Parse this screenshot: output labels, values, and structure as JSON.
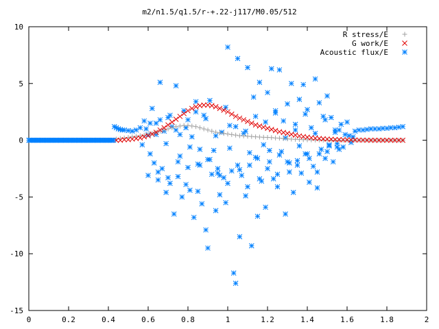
{
  "chart_data": {
    "type": "scatter",
    "title": "m2/n1.5/q1.5/r-+.22-j117/M0.05/512",
    "xlabel": "",
    "ylabel": "",
    "xlim": [
      0,
      2
    ],
    "ylim": [
      -15,
      10
    ],
    "xticks": [
      0,
      0.2,
      0.4,
      0.6,
      0.8,
      1,
      1.2,
      1.4,
      1.6,
      1.8,
      2
    ],
    "xtick_labels": [
      "0",
      "0.2",
      "0.4",
      "0.6",
      "0.8",
      "1",
      "1.2",
      "1.4",
      "1.6",
      "1.8",
      "2"
    ],
    "yticks": [
      -15,
      -10,
      -5,
      0,
      5,
      10
    ],
    "ytick_labels": [
      "-15",
      "-10",
      "-5",
      "0",
      "5",
      "10"
    ],
    "grid": false,
    "legend_position": "top-right",
    "series": [
      {
        "name": "R stress/E",
        "marker": "plus",
        "color": "#a0a0a0",
        "x": [
          0.44,
          0.46,
          0.48,
          0.5,
          0.52,
          0.54,
          0.56,
          0.58,
          0.6,
          0.62,
          0.64,
          0.66,
          0.68,
          0.7,
          0.72,
          0.74,
          0.76,
          0.78,
          0.8,
          0.82,
          0.84,
          0.86,
          0.88,
          0.9,
          0.92,
          0.94,
          0.96,
          0.98,
          1.0,
          1.02,
          1.04,
          1.06,
          1.08,
          1.1,
          1.12,
          1.14,
          1.16,
          1.18,
          1.2,
          1.22,
          1.24,
          1.26,
          1.28,
          1.3,
          1.32,
          1.34,
          1.36,
          1.38,
          1.4,
          1.42,
          1.44,
          1.46,
          1.48,
          1.5,
          1.52,
          1.54,
          1.56,
          1.58,
          1.6,
          1.62,
          1.64,
          1.66,
          1.68,
          1.7,
          1.72,
          1.74,
          1.76,
          1.78,
          1.8,
          1.82,
          1.84,
          1.86,
          1.88
        ],
        "y": [
          0.1,
          0.15,
          0.2,
          0.25,
          0.3,
          0.35,
          0.4,
          0.45,
          0.55,
          0.6,
          0.7,
          0.8,
          0.9,
          1.0,
          1.1,
          1.2,
          1.25,
          1.3,
          1.3,
          1.25,
          1.2,
          1.1,
          1.0,
          0.9,
          0.8,
          0.7,
          0.65,
          0.6,
          0.55,
          0.5,
          0.45,
          0.4,
          0.38,
          0.35,
          0.33,
          0.3,
          0.28,
          0.26,
          0.25,
          0.23,
          0.2,
          0.18,
          0.15,
          0.12,
          0.1,
          0.08,
          0.06,
          0.05,
          0.04,
          0.03,
          0.02,
          0.02,
          0.01,
          0.01,
          0.0,
          0.0,
          0.0,
          0.0,
          0.0,
          0.0,
          0.0,
          0.0,
          0.0,
          0.0,
          0.0,
          0.0,
          0.0,
          0.0,
          0.0,
          0.0,
          0.0,
          0.0,
          0.0
        ]
      },
      {
        "name": "G work/E",
        "marker": "cross",
        "color": "#e00000",
        "x": [
          0.44,
          0.46,
          0.48,
          0.5,
          0.52,
          0.54,
          0.56,
          0.58,
          0.6,
          0.62,
          0.64,
          0.66,
          0.68,
          0.7,
          0.72,
          0.74,
          0.76,
          0.78,
          0.8,
          0.82,
          0.84,
          0.86,
          0.88,
          0.9,
          0.92,
          0.94,
          0.96,
          0.98,
          1.0,
          1.02,
          1.04,
          1.06,
          1.08,
          1.1,
          1.12,
          1.14,
          1.16,
          1.18,
          1.2,
          1.22,
          1.24,
          1.26,
          1.28,
          1.3,
          1.32,
          1.34,
          1.36,
          1.38,
          1.4,
          1.42,
          1.44,
          1.46,
          1.48,
          1.5,
          1.52,
          1.54,
          1.56,
          1.58,
          1.6,
          1.62,
          1.64,
          1.66,
          1.68,
          1.7,
          1.72,
          1.74,
          1.76,
          1.78,
          1.8,
          1.82,
          1.84,
          1.86,
          1.88
        ],
        "y": [
          0.0,
          0.0,
          0.05,
          0.05,
          0.1,
          0.15,
          0.2,
          0.3,
          0.4,
          0.55,
          0.7,
          0.9,
          1.1,
          1.35,
          1.6,
          1.85,
          2.1,
          2.35,
          2.6,
          2.8,
          2.95,
          3.05,
          3.1,
          3.1,
          3.05,
          2.95,
          2.8,
          2.65,
          2.5,
          2.3,
          2.1,
          1.95,
          1.8,
          1.65,
          1.5,
          1.35,
          1.25,
          1.15,
          1.05,
          0.95,
          0.85,
          0.75,
          0.68,
          0.6,
          0.52,
          0.45,
          0.38,
          0.32,
          0.27,
          0.22,
          0.18,
          0.15,
          0.12,
          0.1,
          0.08,
          0.06,
          0.05,
          0.04,
          0.03,
          0.02,
          0.02,
          0.01,
          0.01,
          0.0,
          0.0,
          0.0,
          0.0,
          0.0,
          0.0,
          0.0,
          0.0,
          0.0,
          0.0
        ]
      },
      {
        "name": "Acoustic flux/E",
        "marker": "star",
        "color": "#0080ff",
        "x": [
          0.43,
          0.44,
          0.45,
          0.46,
          0.47,
          0.48,
          0.5,
          0.52,
          0.54,
          0.56,
          0.57,
          0.58,
          0.6,
          0.61,
          0.62,
          0.63,
          0.64,
          0.65,
          0.66,
          0.67,
          0.68,
          0.69,
          0.7,
          0.71,
          0.72,
          0.73,
          0.74,
          0.75,
          0.76,
          0.77,
          0.78,
          0.79,
          0.8,
          0.81,
          0.82,
          0.83,
          0.84,
          0.85,
          0.86,
          0.87,
          0.88,
          0.89,
          0.9,
          0.91,
          0.92,
          0.93,
          0.94,
          0.95,
          0.96,
          0.97,
          0.98,
          0.99,
          1.0,
          1.01,
          1.02,
          1.03,
          1.04,
          1.05,
          1.06,
          1.07,
          1.08,
          1.09,
          1.1,
          1.11,
          1.12,
          1.13,
          1.14,
          1.15,
          1.16,
          1.17,
          1.18,
          1.19,
          1.2,
          1.21,
          1.22,
          1.23,
          1.24,
          1.25,
          1.26,
          1.27,
          1.28,
          1.29,
          1.3,
          1.31,
          1.32,
          1.33,
          1.34,
          1.35,
          1.36,
          1.37,
          1.38,
          1.39,
          1.4,
          1.41,
          1.42,
          1.43,
          1.44,
          1.45,
          1.46,
          1.47,
          1.48,
          1.49,
          1.5,
          1.51,
          1.52,
          1.53,
          1.54,
          1.55,
          1.56,
          1.57,
          1.58,
          1.59,
          1.6,
          1.61,
          1.62,
          1.63,
          1.64,
          1.66,
          1.68,
          1.7,
          1.72,
          1.74,
          1.76,
          1.78,
          1.8,
          1.82,
          1.84,
          1.86,
          1.88,
          0.59,
          0.61,
          0.64,
          0.66,
          0.69,
          0.71,
          0.74,
          0.76,
          0.79,
          0.81,
          0.84,
          0.86,
          0.89,
          0.91,
          0.94,
          0.96,
          0.99,
          1.01,
          1.04,
          1.06,
          1.09,
          1.11,
          1.14,
          1.16,
          1.19,
          1.21,
          1.24,
          1.26,
          1.29,
          1.31,
          1.34,
          1.36,
          1.39,
          1.41,
          1.44,
          1.46,
          1.49,
          1.51,
          1.54,
          1.56,
          0.6,
          0.65,
          0.7,
          0.75,
          0.8,
          0.85,
          0.9,
          0.95,
          1.0,
          1.05,
          1.1,
          1.15,
          1.2,
          1.25,
          1.3,
          1.35,
          1.4,
          1.45,
          1.5,
          1.55
        ],
        "y": [
          1.2,
          1.1,
          1.0,
          0.95,
          0.9,
          0.9,
          0.85,
          0.8,
          0.9,
          1.1,
          -0.4,
          1.7,
          0.5,
          -1.2,
          2.8,
          -2.0,
          1.5,
          -3.5,
          5.1,
          -2.5,
          0.8,
          -4.6,
          2.0,
          -3.8,
          1.2,
          -6.5,
          4.8,
          -3.2,
          0.5,
          -5.0,
          2.6,
          -3.9,
          1.8,
          -4.4,
          0.3,
          -6.8,
          3.4,
          -2.1,
          -0.8,
          -5.6,
          2.2,
          -7.9,
          -9.5,
          3.5,
          -3.0,
          -0.9,
          -6.2,
          -2.5,
          -4.8,
          0.7,
          -3.3,
          -5.5,
          8.2,
          1.3,
          -2.7,
          -11.7,
          -12.6,
          7.2,
          -8.5,
          -3.1,
          0.6,
          -4.9,
          6.4,
          -2.2,
          -9.3,
          3.8,
          -1.5,
          -6.7,
          5.1,
          -3.6,
          -0.4,
          -5.9,
          4.2,
          -1.9,
          6.3,
          -3.4,
          2.4,
          -4.1,
          6.2,
          -1.0,
          1.7,
          -6.5,
          3.2,
          -2.8,
          5.0,
          -4.6,
          0.9,
          -1.8,
          3.6,
          -2.9,
          4.9,
          -1.2,
          2.7,
          -3.7,
          1.1,
          -2.3,
          5.4,
          -4.2,
          3.3,
          -0.8,
          2.1,
          -1.6,
          3.9,
          -0.5,
          2.0,
          -1.9,
          0.7,
          -0.3,
          0.9,
          1.4,
          -0.6,
          0.5,
          1.6,
          0.4,
          -0.2,
          0.3,
          0.8,
          0.9,
          0.9,
          0.95,
          1.0,
          1.0,
          1.0,
          1.05,
          1.05,
          1.1,
          1.1,
          1.15,
          1.2,
          1.0,
          1.5,
          0.5,
          1.8,
          -0.3,
          2.2,
          0.9,
          -1.4,
          1.1,
          -0.6,
          2.5,
          -2.2,
          1.9,
          -1.7,
          0.4,
          -3.1,
          2.9,
          -0.7,
          1.2,
          -2.6,
          0.8,
          -1.1,
          2.1,
          -3.4,
          1.6,
          -0.9,
          2.6,
          -1.3,
          0.2,
          -2.0,
          1.4,
          -0.5,
          2.3,
          -1.6,
          0.6,
          -1.2,
          1.8,
          -0.4,
          0.9,
          -0.8,
          -3.1,
          -2.8,
          -3.3,
          -1.9,
          -2.4,
          -4.5,
          -1.7,
          -2.9,
          -3.8,
          -2.2,
          -4.1,
          -1.6,
          -2.5,
          -3.0,
          -1.9,
          -2.2,
          -1.2,
          -2.8,
          -1.0,
          -0.6
        ]
      }
    ]
  }
}
